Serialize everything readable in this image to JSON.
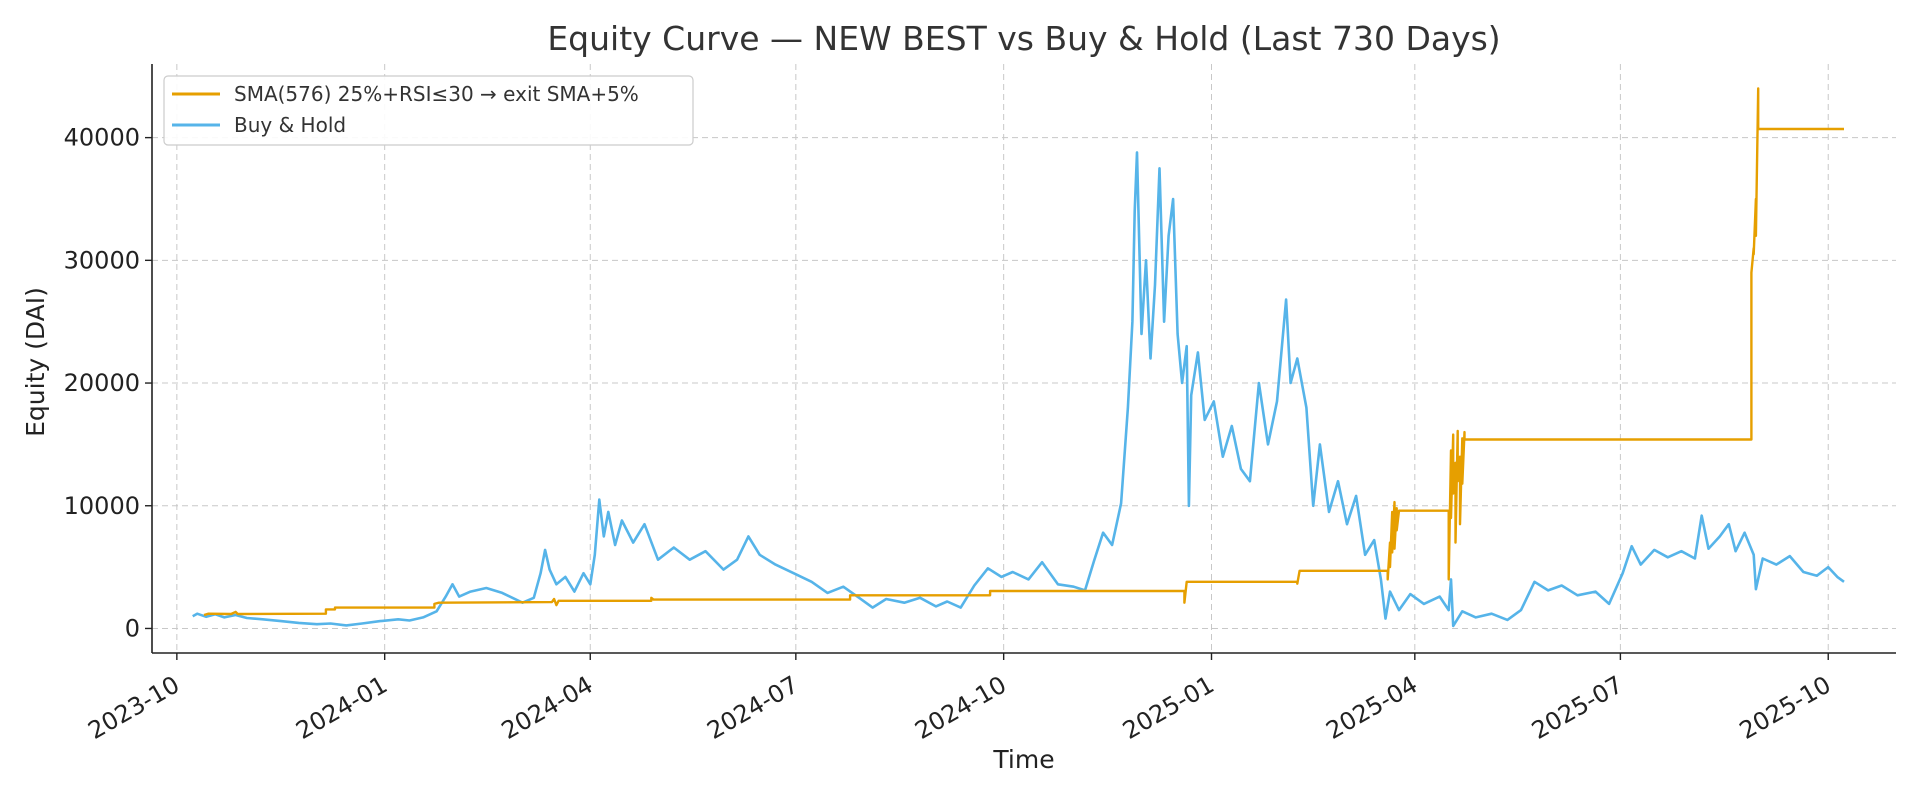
{
  "chart_data": {
    "type": "line",
    "title": "Equity Curve — NEW BEST vs Buy & Hold (Last 730 Days)",
    "xlabel": "Time",
    "ylabel": "Equity (DAI)",
    "xlim": [
      "2023-09-20",
      "2025-10-31"
    ],
    "ylim": [
      -2000,
      46000
    ],
    "x_ticks": [
      "2023-10",
      "2024-01",
      "2024-04",
      "2024-07",
      "2024-10",
      "2025-01",
      "2025-04",
      "2025-07",
      "2025-10"
    ],
    "y_ticks": [
      0,
      10000,
      20000,
      30000,
      40000
    ],
    "grid": true,
    "legend_position": "top-left",
    "series": [
      {
        "name": "SMA(576) 25%+RSI≤30 → exit SMA+5%",
        "color": "#E69F00",
        "points": [
          [
            "2023-10-13",
            1100
          ],
          [
            "2023-10-15",
            1200
          ],
          [
            "2023-10-25",
            1180
          ],
          [
            "2023-10-27",
            1350
          ],
          [
            "2023-10-28",
            1180
          ],
          [
            "2023-12-06",
            1200
          ],
          [
            "2023-12-06",
            1550
          ],
          [
            "2023-12-10",
            1550
          ],
          [
            "2023-12-10",
            1700
          ],
          [
            "2024-01-23",
            1700
          ],
          [
            "2024-01-23",
            2000
          ],
          [
            "2024-01-25",
            2100
          ],
          [
            "2024-03-15",
            2150
          ],
          [
            "2024-03-16",
            2400
          ],
          [
            "2024-03-17",
            1900
          ],
          [
            "2024-03-18",
            2250
          ],
          [
            "2024-04-28",
            2250
          ],
          [
            "2024-04-28",
            2500
          ],
          [
            "2024-04-29",
            2350
          ],
          [
            "2024-07-25",
            2350
          ],
          [
            "2024-07-25",
            2700
          ],
          [
            "2024-09-25",
            2700
          ],
          [
            "2024-09-25",
            3050
          ],
          [
            "2024-12-20",
            3050
          ],
          [
            "2024-12-20",
            2100
          ],
          [
            "2024-12-21",
            3800
          ],
          [
            "2025-02-08",
            3800
          ],
          [
            "2025-02-08",
            3650
          ],
          [
            "2025-02-09",
            4700
          ],
          [
            "2025-03-20",
            4700
          ],
          [
            "2025-03-20",
            4000
          ],
          [
            "2025-03-21",
            7000
          ],
          [
            "2025-03-21",
            5000
          ],
          [
            "2025-03-22",
            9500
          ],
          [
            "2025-03-22",
            6200
          ],
          [
            "2025-03-23",
            10300
          ],
          [
            "2025-03-23",
            6500
          ],
          [
            "2025-03-24",
            9800
          ],
          [
            "2025-03-24",
            8000
          ],
          [
            "2025-03-25",
            9600
          ],
          [
            "2025-04-16",
            9600
          ],
          [
            "2025-04-16",
            4000
          ],
          [
            "2025-04-17",
            14500
          ],
          [
            "2025-04-17",
            9000
          ],
          [
            "2025-04-18",
            15800
          ],
          [
            "2025-04-18",
            11000
          ],
          [
            "2025-04-19",
            13500
          ],
          [
            "2025-04-19",
            7000
          ],
          [
            "2025-04-20",
            16100
          ],
          [
            "2025-04-20",
            12000
          ],
          [
            "2025-04-21",
            14000
          ],
          [
            "2025-04-21",
            8500
          ],
          [
            "2025-04-22",
            15500
          ],
          [
            "2025-04-22",
            11800
          ],
          [
            "2025-04-23",
            16000
          ],
          [
            "2025-04-23",
            15400
          ],
          [
            "2025-08-28",
            15400
          ],
          [
            "2025-08-28",
            29000
          ],
          [
            "2025-08-29",
            31000
          ],
          [
            "2025-08-29",
            30500
          ],
          [
            "2025-08-30",
            35000
          ],
          [
            "2025-08-30",
            32000
          ],
          [
            "2025-08-31",
            44000
          ],
          [
            "2025-08-31",
            40700
          ],
          [
            "2025-10-08",
            40700
          ]
        ]
      },
      {
        "name": "Buy & Hold",
        "color": "#56B4E9",
        "points": [
          [
            "2023-10-08",
            1000
          ],
          [
            "2023-10-10",
            1200
          ],
          [
            "2023-10-14",
            950
          ],
          [
            "2023-10-18",
            1150
          ],
          [
            "2023-10-22",
            900
          ],
          [
            "2023-10-27",
            1100
          ],
          [
            "2023-11-01",
            850
          ],
          [
            "2023-11-08",
            750
          ],
          [
            "2023-11-16",
            600
          ],
          [
            "2023-11-24",
            450
          ],
          [
            "2023-12-02",
            350
          ],
          [
            "2023-12-08",
            400
          ],
          [
            "2023-12-15",
            250
          ],
          [
            "2023-12-22",
            400
          ],
          [
            "2023-12-30",
            600
          ],
          [
            "2024-01-07",
            750
          ],
          [
            "2024-01-12",
            650
          ],
          [
            "2024-01-18",
            900
          ],
          [
            "2024-01-24",
            1400
          ],
          [
            "2024-01-28",
            2600
          ],
          [
            "2024-01-31",
            3600
          ],
          [
            "2024-02-03",
            2600
          ],
          [
            "2024-02-08",
            3000
          ],
          [
            "2024-02-15",
            3300
          ],
          [
            "2024-02-22",
            2900
          ],
          [
            "2024-03-02",
            2100
          ],
          [
            "2024-03-07",
            2500
          ],
          [
            "2024-03-10",
            4500
          ],
          [
            "2024-03-12",
            6400
          ],
          [
            "2024-03-14",
            4800
          ],
          [
            "2024-03-17",
            3600
          ],
          [
            "2024-03-21",
            4200
          ],
          [
            "2024-03-25",
            3000
          ],
          [
            "2024-03-29",
            4500
          ],
          [
            "2024-04-01",
            3600
          ],
          [
            "2024-04-03",
            6000
          ],
          [
            "2024-04-05",
            10500
          ],
          [
            "2024-04-07",
            7500
          ],
          [
            "2024-04-09",
            9500
          ],
          [
            "2024-04-12",
            6800
          ],
          [
            "2024-04-15",
            8800
          ],
          [
            "2024-04-20",
            7000
          ],
          [
            "2024-04-25",
            8500
          ],
          [
            "2024-05-01",
            5600
          ],
          [
            "2024-05-08",
            6600
          ],
          [
            "2024-05-15",
            5600
          ],
          [
            "2024-05-22",
            6300
          ],
          [
            "2024-05-30",
            4800
          ],
          [
            "2024-06-05",
            5600
          ],
          [
            "2024-06-10",
            7500
          ],
          [
            "2024-06-15",
            6000
          ],
          [
            "2024-06-22",
            5200
          ],
          [
            "2024-06-30",
            4500
          ],
          [
            "2024-07-08",
            3800
          ],
          [
            "2024-07-15",
            2900
          ],
          [
            "2024-07-22",
            3400
          ],
          [
            "2024-07-29",
            2500
          ],
          [
            "2024-08-04",
            1700
          ],
          [
            "2024-08-10",
            2400
          ],
          [
            "2024-08-18",
            2100
          ],
          [
            "2024-08-25",
            2500
          ],
          [
            "2024-09-01",
            1800
          ],
          [
            "2024-09-06",
            2200
          ],
          [
            "2024-09-12",
            1700
          ],
          [
            "2024-09-18",
            3500
          ],
          [
            "2024-09-24",
            4900
          ],
          [
            "2024-09-30",
            4200
          ],
          [
            "2024-10-05",
            4600
          ],
          [
            "2024-10-12",
            4000
          ],
          [
            "2024-10-18",
            5400
          ],
          [
            "2024-10-25",
            3600
          ],
          [
            "2024-11-01",
            3400
          ],
          [
            "2024-11-06",
            3100
          ],
          [
            "2024-11-10",
            5500
          ],
          [
            "2024-11-14",
            7800
          ],
          [
            "2024-11-18",
            6800
          ],
          [
            "2024-11-22",
            10200
          ],
          [
            "2024-11-25",
            18000
          ],
          [
            "2024-11-27",
            25000
          ],
          [
            "2024-11-28",
            34000
          ],
          [
            "2024-11-29",
            38800
          ],
          [
            "2024-12-01",
            24000
          ],
          [
            "2024-12-03",
            30000
          ],
          [
            "2024-12-05",
            22000
          ],
          [
            "2024-12-07",
            28000
          ],
          [
            "2024-12-09",
            37500
          ],
          [
            "2024-12-11",
            25000
          ],
          [
            "2024-12-13",
            32000
          ],
          [
            "2024-12-15",
            35000
          ],
          [
            "2024-12-17",
            24000
          ],
          [
            "2024-12-19",
            20000
          ],
          [
            "2024-12-21",
            23000
          ],
          [
            "2024-12-22",
            10000
          ],
          [
            "2024-12-23",
            19000
          ],
          [
            "2024-12-26",
            22500
          ],
          [
            "2024-12-29",
            17000
          ],
          [
            "2025-01-02",
            18500
          ],
          [
            "2025-01-06",
            14000
          ],
          [
            "2025-01-10",
            16500
          ],
          [
            "2025-01-14",
            13000
          ],
          [
            "2025-01-18",
            12000
          ],
          [
            "2025-01-22",
            20000
          ],
          [
            "2025-01-26",
            15000
          ],
          [
            "2025-01-30",
            18500
          ],
          [
            "2025-02-03",
            26800
          ],
          [
            "2025-02-05",
            20000
          ],
          [
            "2025-02-08",
            22000
          ],
          [
            "2025-02-12",
            18000
          ],
          [
            "2025-02-15",
            10000
          ],
          [
            "2025-02-18",
            15000
          ],
          [
            "2025-02-22",
            9500
          ],
          [
            "2025-02-26",
            12000
          ],
          [
            "2025-03-02",
            8500
          ],
          [
            "2025-03-06",
            10800
          ],
          [
            "2025-03-10",
            6000
          ],
          [
            "2025-03-14",
            7200
          ],
          [
            "2025-03-17",
            4000
          ],
          [
            "2025-03-19",
            800
          ],
          [
            "2025-03-21",
            3000
          ],
          [
            "2025-03-25",
            1500
          ],
          [
            "2025-03-30",
            2800
          ],
          [
            "2025-04-05",
            2000
          ],
          [
            "2025-04-12",
            2600
          ],
          [
            "2025-04-16",
            1500
          ],
          [
            "2025-04-17",
            4000
          ],
          [
            "2025-04-18",
            200
          ],
          [
            "2025-04-22",
            1400
          ],
          [
            "2025-04-28",
            900
          ],
          [
            "2025-05-05",
            1200
          ],
          [
            "2025-05-12",
            700
          ],
          [
            "2025-05-18",
            1500
          ],
          [
            "2025-05-24",
            3800
          ],
          [
            "2025-05-30",
            3100
          ],
          [
            "2025-06-05",
            3500
          ],
          [
            "2025-06-12",
            2700
          ],
          [
            "2025-06-20",
            3000
          ],
          [
            "2025-06-26",
            2000
          ],
          [
            "2025-07-02",
            4500
          ],
          [
            "2025-07-06",
            6700
          ],
          [
            "2025-07-10",
            5200
          ],
          [
            "2025-07-16",
            6400
          ],
          [
            "2025-07-22",
            5800
          ],
          [
            "2025-07-28",
            6300
          ],
          [
            "2025-08-03",
            5700
          ],
          [
            "2025-08-06",
            9200
          ],
          [
            "2025-08-09",
            6500
          ],
          [
            "2025-08-14",
            7500
          ],
          [
            "2025-08-18",
            8500
          ],
          [
            "2025-08-21",
            6300
          ],
          [
            "2025-08-25",
            7800
          ],
          [
            "2025-08-29",
            6000
          ],
          [
            "2025-08-30",
            3200
          ],
          [
            "2025-09-02",
            5700
          ],
          [
            "2025-09-08",
            5200
          ],
          [
            "2025-09-14",
            5900
          ],
          [
            "2025-09-20",
            4600
          ],
          [
            "2025-09-26",
            4300
          ],
          [
            "2025-10-01",
            5000
          ],
          [
            "2025-10-05",
            4200
          ],
          [
            "2025-10-08",
            3800
          ]
        ]
      }
    ]
  }
}
